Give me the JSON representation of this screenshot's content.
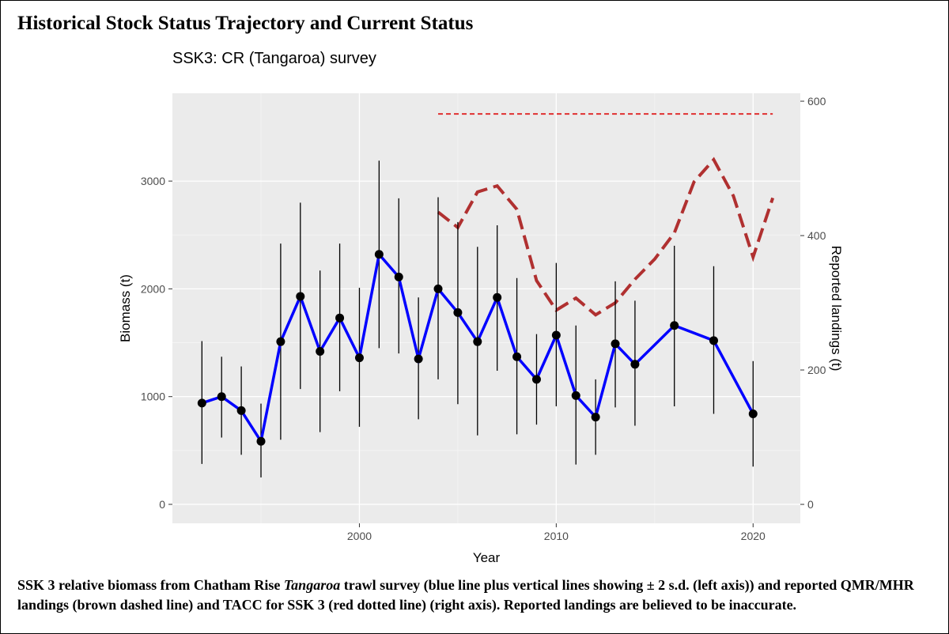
{
  "chart_data": {
    "type": "line",
    "title": "Historical Stock Status Trajectory and Current Status",
    "subtitle": "SSK3: CR (Tangaroa) survey",
    "xlabel": "Year",
    "ylabel": "Biomass (t)",
    "y2label": "Reported landings (t)",
    "xlim": [
      1990.5,
      2022.4
    ],
    "xticks": [
      2000,
      2010,
      2020
    ],
    "ylim": [
      -176,
      3815
    ],
    "yticks": [
      0,
      1000,
      2000,
      3000
    ],
    "y2lim": [
      -28.2,
      611.8
    ],
    "y2ticks": [
      0,
      200,
      400,
      600
    ],
    "grid": true,
    "biomass": {
      "color": "#0000ff",
      "x": [
        1992,
        1993,
        1994,
        1995,
        1996,
        1997,
        1998,
        1999,
        2000,
        2001,
        2002,
        2003,
        2004,
        2005,
        2006,
        2007,
        2008,
        2009,
        2010,
        2011,
        2012,
        2013,
        2014,
        2016,
        2018,
        2020
      ],
      "values": [
        940,
        1000,
        870,
        585,
        1510,
        1930,
        1420,
        1730,
        1360,
        2320,
        2110,
        1350,
        2000,
        1780,
        1510,
        1920,
        1370,
        1160,
        1570,
        1010,
        810,
        1490,
        1300,
        1660,
        1520,
        840
      ],
      "lower": [
        375,
        620,
        460,
        250,
        600,
        1070,
        670,
        1050,
        720,
        1450,
        1400,
        790,
        1160,
        930,
        640,
        1240,
        650,
        740,
        910,
        370,
        460,
        900,
        730,
        910,
        840,
        350
      ],
      "upper": [
        1515,
        1370,
        1280,
        935,
        2420,
        2800,
        2170,
        2420,
        2010,
        3190,
        2840,
        1920,
        2850,
        2620,
        2390,
        2590,
        2100,
        1580,
        2240,
        1660,
        1160,
        2070,
        1890,
        2400,
        2210,
        1330
      ]
    },
    "landings": {
      "color": "#b03030",
      "axis": "y2",
      "x": [
        2004,
        2005,
        2006,
        2007,
        2008,
        2009,
        2010,
        2011,
        2012,
        2013,
        2014,
        2015,
        2016,
        2017,
        2018,
        2019,
        2020,
        2021
      ],
      "values": [
        435,
        412,
        465,
        474,
        439,
        333,
        289,
        307,
        282,
        300,
        335,
        365,
        404,
        480,
        513,
        459,
        368,
        456
      ]
    },
    "tacc": {
      "color": "#e03030",
      "axis": "y2",
      "x": [
        2004,
        2021
      ],
      "values": [
        581,
        581
      ]
    },
    "caption": [
      "SSK 3 relative biomass from Chatham Rise ",
      "Tangaroa",
      " trawl survey (blue line plus vertical lines showing ± 2 s.d. (left axis)) and reported QMR/MHR landings (brown dashed line) and TACC for SSK 3 (red dotted line) (right axis). Reported landings are believed to be inaccurate."
    ]
  }
}
